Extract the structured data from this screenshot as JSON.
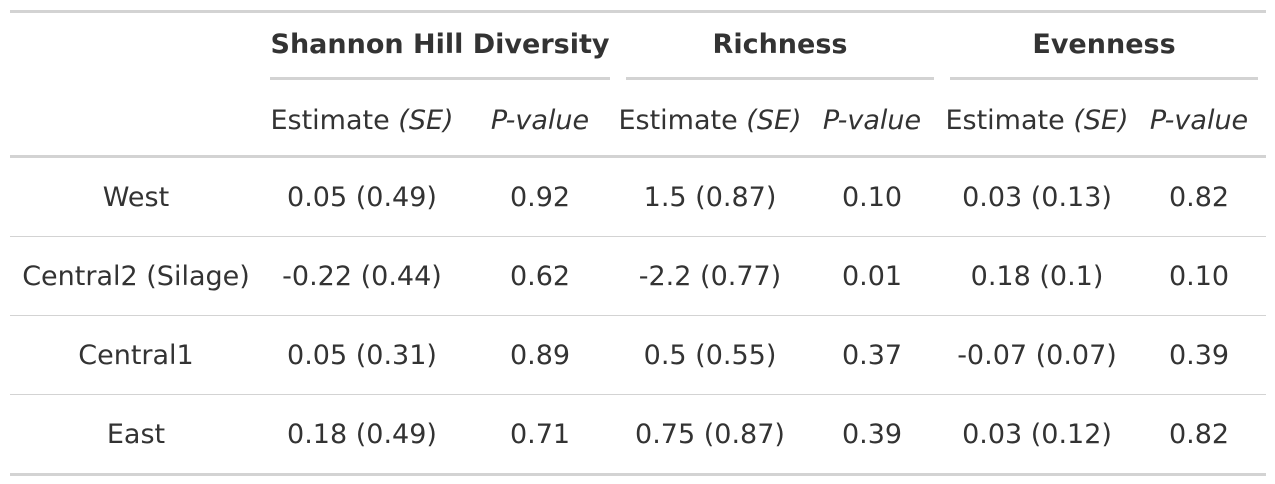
{
  "table": {
    "spanners": [
      {
        "label": "Shannon Hill Diversity"
      },
      {
        "label": "Richness"
      },
      {
        "label": "Evenness"
      }
    ],
    "estimate_label": "Estimate",
    "se_label": "(SE)",
    "pvalue_label": "P-value",
    "rows": [
      {
        "label": "West",
        "shannon_est": "0.05 (0.49)",
        "shannon_p": "0.92",
        "richness_est": "1.5 (0.87)",
        "richness_p": "0.10",
        "evenness_est": "0.03 (0.13)",
        "evenness_p": "0.82"
      },
      {
        "label": "Central2 (Silage)",
        "shannon_est": "-0.22 (0.44)",
        "shannon_p": "0.62",
        "richness_est": "-2.2 (0.77)",
        "richness_p": "0.01",
        "evenness_est": "0.18 (0.1)",
        "evenness_p": "0.10"
      },
      {
        "label": "Central1",
        "shannon_est": "0.05 (0.31)",
        "shannon_p": "0.89",
        "richness_est": "0.5 (0.55)",
        "richness_p": "0.37",
        "evenness_est": "-0.07 (0.07)",
        "evenness_p": "0.39"
      },
      {
        "label": "East",
        "shannon_est": "0.18 (0.49)",
        "shannon_p": "0.71",
        "richness_est": "0.75 (0.87)",
        "richness_p": "0.39",
        "evenness_est": "0.03 (0.12)",
        "evenness_p": "0.82"
      }
    ]
  }
}
